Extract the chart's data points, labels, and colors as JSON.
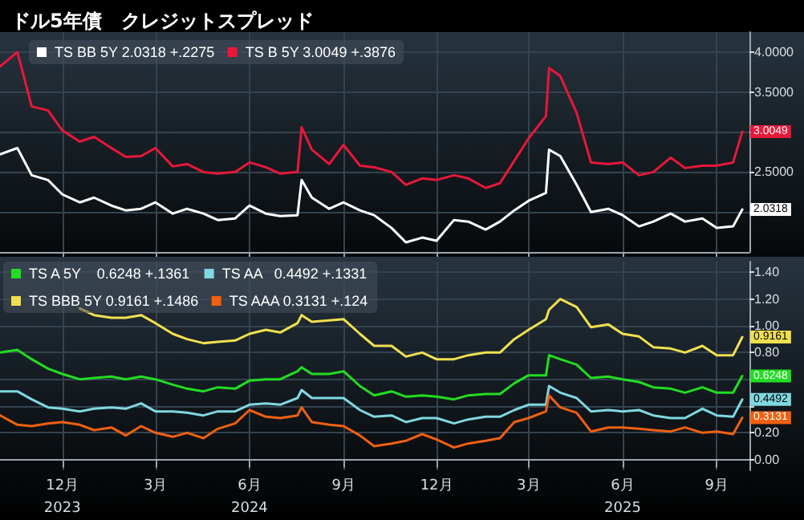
{
  "chart_data": [
    {
      "type": "line",
      "title": "ドル5年債　クレジットスプレッド",
      "x": [
        "2023-10-15",
        "2023-11-01",
        "2023-11-15",
        "2023-12-01",
        "2023-12-15",
        "2024-01-01",
        "2024-01-15",
        "2024-02-01",
        "2024-02-15",
        "2024-03-01",
        "2024-03-15",
        "2024-04-01",
        "2024-04-15",
        "2024-05-01",
        "2024-05-15",
        "2024-06-01",
        "2024-06-15",
        "2024-07-01",
        "2024-07-15",
        "2024-08-01",
        "2024-08-05",
        "2024-08-15",
        "2024-09-01",
        "2024-09-15",
        "2024-10-01",
        "2024-10-15",
        "2024-11-01",
        "2024-11-15",
        "2024-12-01",
        "2024-12-15",
        "2025-01-01",
        "2025-01-15",
        "2025-02-01",
        "2025-02-15",
        "2025-03-01",
        "2025-03-15",
        "2025-04-01",
        "2025-04-04",
        "2025-04-15",
        "2025-05-01",
        "2025-05-15",
        "2025-06-01",
        "2025-06-15",
        "2025-07-01",
        "2025-07-15",
        "2025-08-01",
        "2025-08-15",
        "2025-09-01",
        "2025-09-15",
        "2025-10-01",
        "2025-10-10"
      ],
      "series": [
        {
          "name": "TS BB 5Y 2.0318 +.2275",
          "color": "#ffffff",
          "values": [
            2.72,
            2.8,
            2.46,
            2.4,
            2.22,
            2.12,
            2.18,
            2.08,
            2.02,
            2.04,
            2.12,
            1.98,
            2.04,
            1.98,
            1.9,
            1.92,
            2.08,
            1.98,
            1.95,
            1.96,
            2.4,
            2.18,
            2.04,
            2.12,
            2.02,
            1.96,
            1.8,
            1.62,
            1.68,
            1.64,
            1.9,
            1.88,
            1.78,
            1.88,
            2.02,
            2.14,
            2.24,
            2.78,
            2.7,
            2.34,
            2.0,
            2.04,
            1.96,
            1.82,
            1.88,
            1.98,
            1.88,
            1.92,
            1.8,
            1.82,
            2.0318
          ]
        },
        {
          "name": "TS B 5Y 3.0049 +.3876",
          "color": "#e8173a",
          "values": [
            3.82,
            4.0,
            3.32,
            3.27,
            3.02,
            2.88,
            2.94,
            2.8,
            2.69,
            2.7,
            2.8,
            2.57,
            2.6,
            2.5,
            2.48,
            2.5,
            2.62,
            2.56,
            2.48,
            2.5,
            3.06,
            2.78,
            2.6,
            2.84,
            2.58,
            2.56,
            2.5,
            2.34,
            2.42,
            2.4,
            2.46,
            2.42,
            2.3,
            2.36,
            2.64,
            2.92,
            3.2,
            3.8,
            3.7,
            3.24,
            2.62,
            2.6,
            2.62,
            2.46,
            2.5,
            2.68,
            2.55,
            2.58,
            2.58,
            2.62,
            3.0049
          ]
        }
      ],
      "xlim": [
        "2023-10-15",
        "2025-10-17"
      ],
      "ylim": [
        1.5,
        4.25
      ],
      "xticks": [
        {
          "value": "2023-12-15",
          "label": null
        },
        {
          "value": "2024-03-15",
          "label": null
        },
        {
          "value": "2024-06-15",
          "label": null
        },
        {
          "value": "2024-09-15",
          "label": null
        },
        {
          "value": "2024-12-15",
          "label": null
        },
        {
          "value": "2025-03-15",
          "label": null
        },
        {
          "value": "2025-06-15",
          "label": null
        },
        {
          "value": "2025-09-15",
          "label": null
        }
      ],
      "yticks": [
        {
          "value": 2,
          "label": null
        },
        {
          "value": 2.5,
          "label": "2.5000"
        },
        {
          "value": 3,
          "label": null
        },
        {
          "value": 3.5,
          "label": "3.5000"
        },
        {
          "value": 4,
          "label": "4.0000"
        }
      ],
      "tick_labels": "y",
      "grid": true,
      "legend": "top left",
      "marker": "none",
      "line_style": "solid",
      "annotations": [
        {
          "text": "2.0318",
          "x": "2025-10-10",
          "y": 2.0318
        },
        {
          "text": "3.0049",
          "x": "2025-10-10",
          "y": 3.0049
        }
      ]
    },
    {
      "type": "line",
      "x": [
        "2023-10-15",
        "2023-11-01",
        "2023-11-15",
        "2023-12-01",
        "2023-12-15",
        "2024-01-01",
        "2024-01-15",
        "2024-02-01",
        "2024-02-15",
        "2024-03-01",
        "2024-03-15",
        "2024-04-01",
        "2024-04-15",
        "2024-05-01",
        "2024-05-15",
        "2024-06-01",
        "2024-06-15",
        "2024-07-01",
        "2024-07-15",
        "2024-08-01",
        "2024-08-05",
        "2024-08-15",
        "2024-09-01",
        "2024-09-15",
        "2024-10-01",
        "2024-10-15",
        "2024-11-01",
        "2024-11-15",
        "2024-12-01",
        "2024-12-15",
        "2025-01-01",
        "2025-01-15",
        "2025-02-01",
        "2025-02-15",
        "2025-03-01",
        "2025-03-15",
        "2025-04-01",
        "2025-04-04",
        "2025-04-15",
        "2025-05-01",
        "2025-05-15",
        "2025-06-01",
        "2025-06-15",
        "2025-07-01",
        "2025-07-15",
        "2025-08-01",
        "2025-08-15",
        "2025-09-01",
        "2025-09-15",
        "2025-10-01",
        "2025-10-10"
      ],
      "series": [
        {
          "name": "TS A 5Y    0.6248 +.1361",
          "color": "#22dd22",
          "values": [
            0.8,
            0.82,
            0.75,
            0.68,
            0.64,
            0.6,
            0.61,
            0.62,
            0.6,
            0.62,
            0.6,
            0.56,
            0.53,
            0.51,
            0.54,
            0.53,
            0.59,
            0.6,
            0.6,
            0.66,
            0.69,
            0.64,
            0.64,
            0.66,
            0.55,
            0.48,
            0.51,
            0.47,
            0.48,
            0.47,
            0.45,
            0.48,
            0.49,
            0.49,
            0.57,
            0.63,
            0.63,
            0.78,
            0.75,
            0.71,
            0.61,
            0.62,
            0.6,
            0.58,
            0.54,
            0.53,
            0.5,
            0.54,
            0.5,
            0.5,
            0.6248
          ]
        },
        {
          "name": "TS AA   0.4492 +.1331",
          "color": "#7fd8e0",
          "values": [
            0.51,
            0.51,
            0.45,
            0.39,
            0.38,
            0.36,
            0.38,
            0.39,
            0.38,
            0.42,
            0.36,
            0.36,
            0.35,
            0.33,
            0.36,
            0.36,
            0.41,
            0.42,
            0.41,
            0.46,
            0.52,
            0.46,
            0.46,
            0.46,
            0.37,
            0.32,
            0.33,
            0.28,
            0.31,
            0.31,
            0.27,
            0.3,
            0.32,
            0.32,
            0.37,
            0.41,
            0.41,
            0.55,
            0.5,
            0.46,
            0.36,
            0.37,
            0.36,
            0.37,
            0.33,
            0.31,
            0.31,
            0.38,
            0.33,
            0.32,
            0.4492
          ]
        },
        {
          "name": "TS BBB 5Y 0.9161 +.1486",
          "color": "#f0e050",
          "values": [
            null,
            null,
            null,
            null,
            null,
            1.13,
            1.08,
            1.06,
            1.06,
            1.08,
            1.02,
            0.94,
            0.9,
            0.87,
            0.88,
            0.89,
            0.94,
            0.97,
            0.95,
            1.02,
            1.08,
            1.03,
            1.04,
            1.05,
            0.94,
            0.85,
            0.85,
            0.77,
            0.8,
            0.75,
            0.75,
            0.78,
            0.8,
            0.8,
            0.9,
            0.97,
            1.05,
            1.12,
            1.2,
            1.14,
            0.99,
            1.01,
            0.94,
            0.92,
            0.84,
            0.83,
            0.8,
            0.85,
            0.78,
            0.78,
            0.9161
          ]
        },
        {
          "name": "TS AAA 0.3131 +.124",
          "color": "#f06010",
          "values": [
            0.33,
            0.26,
            0.25,
            0.27,
            0.28,
            0.26,
            0.22,
            0.24,
            0.18,
            0.25,
            0.2,
            0.17,
            0.2,
            0.16,
            0.23,
            0.27,
            0.37,
            0.32,
            0.31,
            0.33,
            0.39,
            0.28,
            0.26,
            0.25,
            0.18,
            0.1,
            0.12,
            0.14,
            0.19,
            0.15,
            0.09,
            0.12,
            0.14,
            0.16,
            0.28,
            0.31,
            0.36,
            0.48,
            0.39,
            0.35,
            0.21,
            0.24,
            0.24,
            0.23,
            0.22,
            0.21,
            0.24,
            0.2,
            0.21,
            0.19,
            0.3131
          ]
        }
      ],
      "xlim": [
        "2023-10-15",
        "2025-10-17"
      ],
      "ylim": [
        -0.08,
        1.48
      ],
      "xticks": [
        {
          "value": "2023-12-15",
          "label": "12月\n2023"
        },
        {
          "value": "2024-03-15",
          "label": "3月"
        },
        {
          "value": "2024-06-15",
          "label": "6月\n2024"
        },
        {
          "value": "2024-09-15",
          "label": "9月"
        },
        {
          "value": "2024-12-15",
          "label": "12月"
        },
        {
          "value": "2025-03-15",
          "label": "3月"
        },
        {
          "value": "2025-06-15",
          "label": "6月\n2025"
        },
        {
          "value": "2025-09-15",
          "label": "9月"
        }
      ],
      "yticks": [
        {
          "value": 0,
          "label": "0.00"
        },
        {
          "value": 0.2,
          "label": "0.20"
        },
        {
          "value": 0.4,
          "label": null
        },
        {
          "value": 0.6,
          "label": null
        },
        {
          "value": 0.8,
          "label": "0.80"
        },
        {
          "value": 1,
          "label": "1.00"
        },
        {
          "value": 1.2,
          "label": "1.20"
        },
        {
          "value": 1.4,
          "label": "1.40"
        }
      ],
      "grid": true,
      "legend": "top left",
      "marker": "none",
      "line_style": "solid",
      "annotations": [
        {
          "text": "0.9161",
          "x": "2025-10-10",
          "y": 0.9161
        },
        {
          "text": "0.6248",
          "x": "2025-10-10",
          "y": 0.6248
        },
        {
          "text": "0.4492",
          "x": "2025-10-10",
          "y": 0.4492
        },
        {
          "text": "0.3131",
          "x": "2025-10-10",
          "y": 0.3131
        }
      ]
    }
  ]
}
